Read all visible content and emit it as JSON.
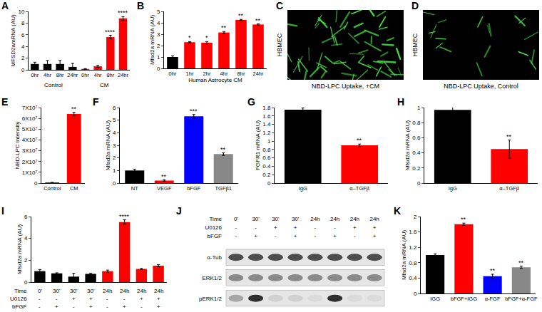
{
  "chart_data": [
    {
      "label": "A",
      "type": "bar",
      "y_label": "MFSD2amRNA (AU)",
      "categories": [
        "0hr",
        "4hr",
        "8hr",
        "24hr",
        "0hr",
        "4hr",
        "8hr",
        "24hr"
      ],
      "values": [
        1.0,
        1.0,
        1.0,
        0.5,
        0.15,
        0.6,
        5.6,
        8.8
      ],
      "errors": [
        0.3,
        0.6,
        0.6,
        0.6,
        0.05,
        0.2,
        0.3,
        0.3
      ],
      "colors": [
        "#000000",
        "#000000",
        "#000000",
        "#000000",
        "#ff0000",
        "#ff0000",
        "#ff0000",
        "#ff0000"
      ],
      "significance": [
        null,
        null,
        null,
        null,
        null,
        null,
        "****",
        "****"
      ],
      "groups": [
        {
          "label": "Control",
          "from": 0,
          "to": 3
        },
        {
          "label": "CM",
          "from": 4,
          "to": 7
        }
      ],
      "ylim": [
        0,
        10
      ],
      "yticks": [
        0,
        2,
        4,
        6,
        8,
        10
      ],
      "grid": false
    },
    {
      "label": "B",
      "type": "bar",
      "y_label": "Mfsd2a mRNA (AU)",
      "x_label": "Human Astrocyte CM",
      "categories": [
        "0hr",
        "1hr",
        "2hr",
        "4hr",
        "8hr",
        "24hr"
      ],
      "values": [
        1.0,
        2.3,
        2.25,
        3.15,
        4.25,
        3.85
      ],
      "errors": [
        0.1,
        0.05,
        0.1,
        0.08,
        0.05,
        0.05
      ],
      "colors": [
        "#000000",
        "#ff0000",
        "#ff0000",
        "#ff0000",
        "#ff0000",
        "#ff0000"
      ],
      "significance": [
        null,
        "*",
        "*",
        "**",
        "**",
        "**"
      ],
      "ylim": [
        0,
        5
      ],
      "yticks": [
        0,
        1,
        2,
        3,
        4,
        5
      ],
      "grid": false
    },
    {
      "label": "E",
      "type": "bar",
      "y_label": "NBD-LPC Intensity",
      "categories": [
        "Control",
        "CM"
      ],
      "values": [
        500000,
        64000000
      ],
      "errors": [
        100000,
        1500000
      ],
      "colors": [
        "#000000",
        "#ff0000"
      ],
      "significance": [
        null,
        "**"
      ],
      "ylim": [
        0,
        70000000
      ],
      "yticks": [
        0,
        {
          "value": 10000000,
          "label": "1X10⁷"
        },
        {
          "value": 20000000,
          "label": "2X10⁷"
        },
        {
          "value": 30000000,
          "label": "3X10⁷"
        },
        {
          "value": 40000000,
          "label": "4X10⁷"
        },
        {
          "value": 50000000,
          "label": "5X10⁷"
        },
        {
          "value": 60000000,
          "label": "6X10⁷"
        },
        {
          "value": 70000000,
          "label": "7X10⁷"
        }
      ],
      "grid": false
    },
    {
      "label": "F",
      "type": "bar",
      "y_label": "Mfsd2a mRNA (AU)",
      "categories": [
        "NT",
        "VEGF",
        "bFGF",
        "TGFβ1"
      ],
      "values": [
        1.0,
        0.2,
        5.3,
        2.3
      ],
      "errors": [
        0.1,
        0.05,
        0.15,
        0.1
      ],
      "colors": [
        "#000000",
        "#ff0000",
        "#0000ff",
        "#888888"
      ],
      "significance": [
        null,
        "**",
        "***",
        "**"
      ],
      "ylim": [
        0,
        6
      ],
      "yticks": [
        0,
        1,
        2,
        3,
        4,
        5,
        6
      ],
      "grid": false
    },
    {
      "label": "G",
      "type": "bar",
      "y_label": "FGFR1 mRNA (AU)",
      "categories": [
        "IgG",
        "α–TGFβ"
      ],
      "values": [
        1.75,
        0.9
      ],
      "errors": [
        0.04,
        0.03
      ],
      "colors": [
        "#000000",
        "#ff0000"
      ],
      "significance": [
        null,
        "**"
      ],
      "ylim": [
        0,
        1.8
      ],
      "yticks": [
        0,
        0.2,
        0.4,
        0.6,
        0.8,
        1,
        1.2,
        1.4,
        1.6,
        1.8
      ],
      "grid": false
    },
    {
      "label": "H",
      "type": "bar",
      "y_label": "Mfsd2a mRNA (AU)",
      "categories": [
        "IgG",
        "α–TGFβ"
      ],
      "values": [
        0.97,
        0.45
      ],
      "errors": [
        0.04,
        0.12
      ],
      "colors": [
        "#000000",
        "#ff0000"
      ],
      "significance": [
        null,
        "**"
      ],
      "ylim": [
        0,
        1
      ],
      "yticks": [
        0,
        0.2,
        0.4,
        0.6,
        0.8,
        1
      ],
      "grid": false
    },
    {
      "label": "I",
      "type": "bar",
      "y_label": "Mfsd2a mRNA (AU)",
      "category_rows": [
        {
          "name": "Time",
          "labels": [
            "0'",
            "30'",
            "30'",
            "30'",
            "24h",
            "24h",
            "24h",
            "24h"
          ]
        },
        {
          "name": "U0126",
          "labels": [
            "-",
            "-",
            "+",
            "+",
            "-",
            "-",
            "+",
            "+"
          ]
        },
        {
          "name": "bFGF",
          "labels": [
            "-",
            "+",
            "-",
            "+",
            "-",
            "+",
            "-",
            "+"
          ]
        }
      ],
      "values": [
        1.0,
        0.8,
        0.5,
        0.75,
        1.0,
        5.5,
        1.2,
        1.5
      ],
      "errors": [
        0.15,
        0.05,
        0.3,
        0.05,
        0.1,
        0.2,
        0.05,
        0.1
      ],
      "colors": [
        "#000000",
        "#000000",
        "#000000",
        "#000000",
        "#ff0000",
        "#ff0000",
        "#ff0000",
        "#ff0000"
      ],
      "significance": [
        null,
        null,
        null,
        null,
        null,
        "****",
        null,
        null
      ],
      "ylim": [
        0,
        6
      ],
      "yticks": [
        0,
        2,
        4,
        6
      ],
      "grid": false
    },
    {
      "label": "K",
      "type": "bar",
      "y_label": "Mfsd2a mRNA (AU)",
      "categories": [
        "IGG",
        "bFGF+IGG",
        "α-FGF",
        "bFGF+α-FGF"
      ],
      "values": [
        1.0,
        1.8,
        0.45,
        0.68
      ],
      "errors": [
        0.03,
        0.03,
        0.05,
        0.03
      ],
      "colors": [
        "#000000",
        "#ff0000",
        "#0000ff",
        "#888888"
      ],
      "significance": [
        null,
        "**",
        "**",
        "**"
      ],
      "ylim": [
        0,
        2
      ],
      "yticks": [
        0,
        0.4,
        0.8,
        1.2,
        1.6,
        2
      ],
      "grid": false
    }
  ],
  "images": [
    {
      "label": "C",
      "side_label": "HBMEC",
      "caption": "NBD-LPC Uptake, +CM",
      "cells": 60
    },
    {
      "label": "D",
      "side_label": "HBMEC",
      "caption": "NBD-LPC Uptake, Control",
      "cells": 18
    }
  ],
  "blot": {
    "label": "J",
    "lane_rows": [
      {
        "name": "Time",
        "labels": [
          "0'",
          "30'",
          "30'",
          "30'",
          "24h",
          "24h",
          "24h",
          "24h"
        ]
      },
      {
        "name": "U0126",
        "labels": [
          "-",
          "-",
          "+",
          "+",
          "-",
          "-",
          "+",
          "+"
        ]
      },
      {
        "name": "bFGF",
        "labels": [
          "-",
          "+",
          "-",
          "+",
          "-",
          "+",
          "-",
          "+"
        ]
      }
    ],
    "blots": [
      {
        "name": "α-Tub",
        "bands": [
          0.75,
          0.75,
          0.75,
          0.75,
          0.75,
          0.75,
          0.75,
          0.75
        ]
      },
      {
        "name": "ERK1/2",
        "bands": [
          0.45,
          0.45,
          0.45,
          0.45,
          0.45,
          0.45,
          0.45,
          0.45
        ]
      },
      {
        "name": "pERK1/2",
        "bands": [
          0.3,
          0.9,
          0.1,
          0.1,
          0.05,
          0.9,
          0.05,
          0.05
        ]
      }
    ]
  }
}
